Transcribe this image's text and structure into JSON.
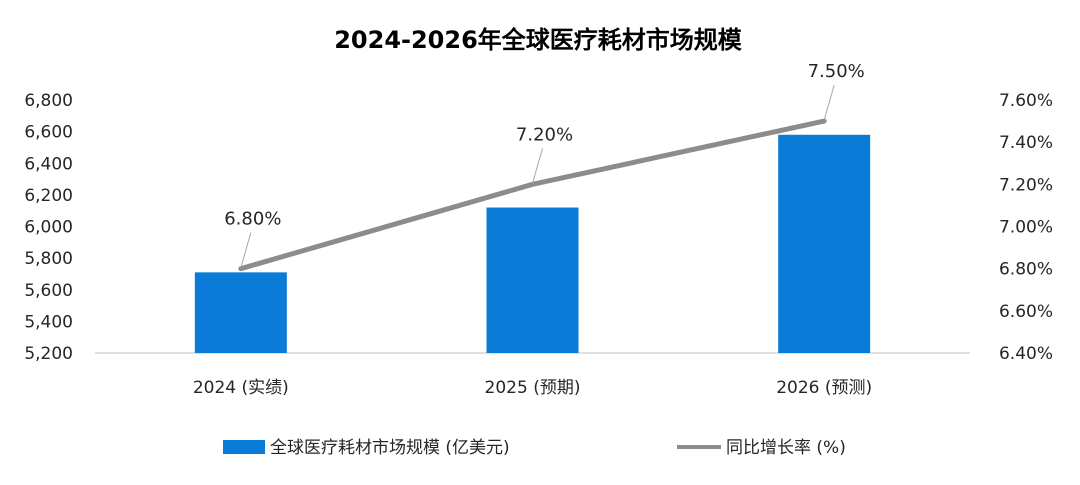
{
  "chart_data": {
    "type": "bar",
    "title": "2024-2026年全球医疗耗材市场规模",
    "categories": [
      "2024 (实绩)",
      "2025 (预期)",
      "2026 (预测)"
    ],
    "series": [
      {
        "name": "全球医疗耗材市场规模 (亿美元)",
        "type": "bar",
        "axis": "left",
        "values": [
          5710,
          6120,
          6580
        ],
        "color": "#0A7BD6"
      },
      {
        "name": "同比增长率 (%)",
        "type": "line",
        "axis": "right",
        "values": [
          6.8,
          7.2,
          7.5
        ],
        "labels": [
          "6.80%",
          "7.20%",
          "7.50%"
        ],
        "color": "#8C8C8C"
      }
    ],
    "y_left": {
      "min": 5200,
      "max": 6800,
      "step": 200,
      "ticks": [
        "5,200",
        "5,400",
        "5,600",
        "5,800",
        "6,000",
        "6,200",
        "6,400",
        "6,600",
        "6,800"
      ]
    },
    "y_right": {
      "min": 6.4,
      "max": 7.6,
      "step": 0.2,
      "ticks": [
        "6.40%",
        "6.60%",
        "6.80%",
        "7.00%",
        "7.20%",
        "7.40%",
        "7.60%"
      ]
    },
    "grid": false,
    "legend": "bottom"
  }
}
